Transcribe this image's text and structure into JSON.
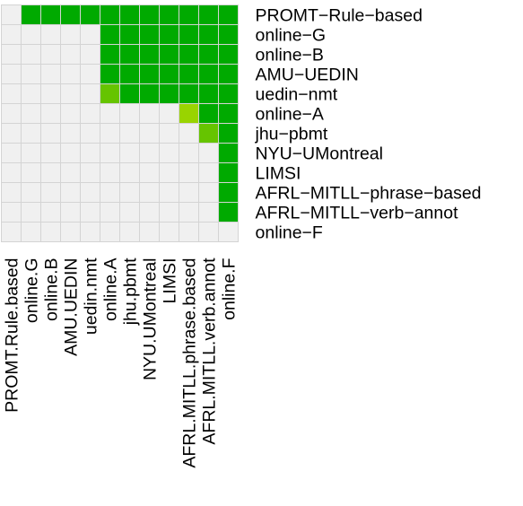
{
  "chart_data": {
    "type": "heatmap",
    "title": "",
    "xlabel": "",
    "ylabel": "",
    "x_labels": [
      "PROMT.Rule.based",
      "online.G",
      "online.B",
      "AMU.UEDIN",
      "uedin.nmt",
      "online.A",
      "jhu.pbmt",
      "NYU.UMontreal",
      "LIMSI",
      "AFRL.MITLL.phrase.based",
      "AFRL.MITLL.verb.annot",
      "online.F"
    ],
    "y_labels": [
      "PROMT−Rule−based",
      "online−G",
      "online−B",
      "AMU−UEDIN",
      "uedin−nmt",
      "online−A",
      "jhu−pbmt",
      "NYU−UMontreal",
      "LIMSI",
      "AFRL−MITLL−phrase−based",
      "AFRL−MITLL−verb−annot",
      "online−F"
    ],
    "cell_levels": [
      "empty",
      "strong",
      "medium",
      "weak"
    ],
    "values": [
      [
        0,
        1,
        1,
        1,
        1,
        1,
        1,
        1,
        1,
        1,
        1,
        1
      ],
      [
        0,
        0,
        0,
        0,
        0,
        1,
        1,
        1,
        1,
        1,
        1,
        1
      ],
      [
        0,
        0,
        0,
        0,
        0,
        1,
        1,
        1,
        1,
        1,
        1,
        1
      ],
      [
        0,
        0,
        0,
        0,
        0,
        1,
        1,
        1,
        1,
        1,
        1,
        1
      ],
      [
        0,
        0,
        0,
        0,
        0,
        2,
        1,
        1,
        1,
        1,
        1,
        1
      ],
      [
        0,
        0,
        0,
        0,
        0,
        0,
        0,
        0,
        0,
        3,
        1,
        1
      ],
      [
        0,
        0,
        0,
        0,
        0,
        0,
        0,
        0,
        0,
        0,
        2,
        1
      ],
      [
        0,
        0,
        0,
        0,
        0,
        0,
        0,
        0,
        0,
        0,
        0,
        1
      ],
      [
        0,
        0,
        0,
        0,
        0,
        0,
        0,
        0,
        0,
        0,
        0,
        1
      ],
      [
        0,
        0,
        0,
        0,
        0,
        0,
        0,
        0,
        0,
        0,
        0,
        1
      ],
      [
        0,
        0,
        0,
        0,
        0,
        0,
        0,
        0,
        0,
        0,
        0,
        1
      ],
      [
        0,
        0,
        0,
        0,
        0,
        0,
        0,
        0,
        0,
        0,
        0,
        0
      ]
    ],
    "colors": {
      "empty": "#f0f0f0",
      "strong": "#00aa00",
      "medium": "#66c400",
      "weak": "#99d400",
      "grid": "#d4d4d4"
    },
    "grid": true,
    "legend": "none"
  }
}
